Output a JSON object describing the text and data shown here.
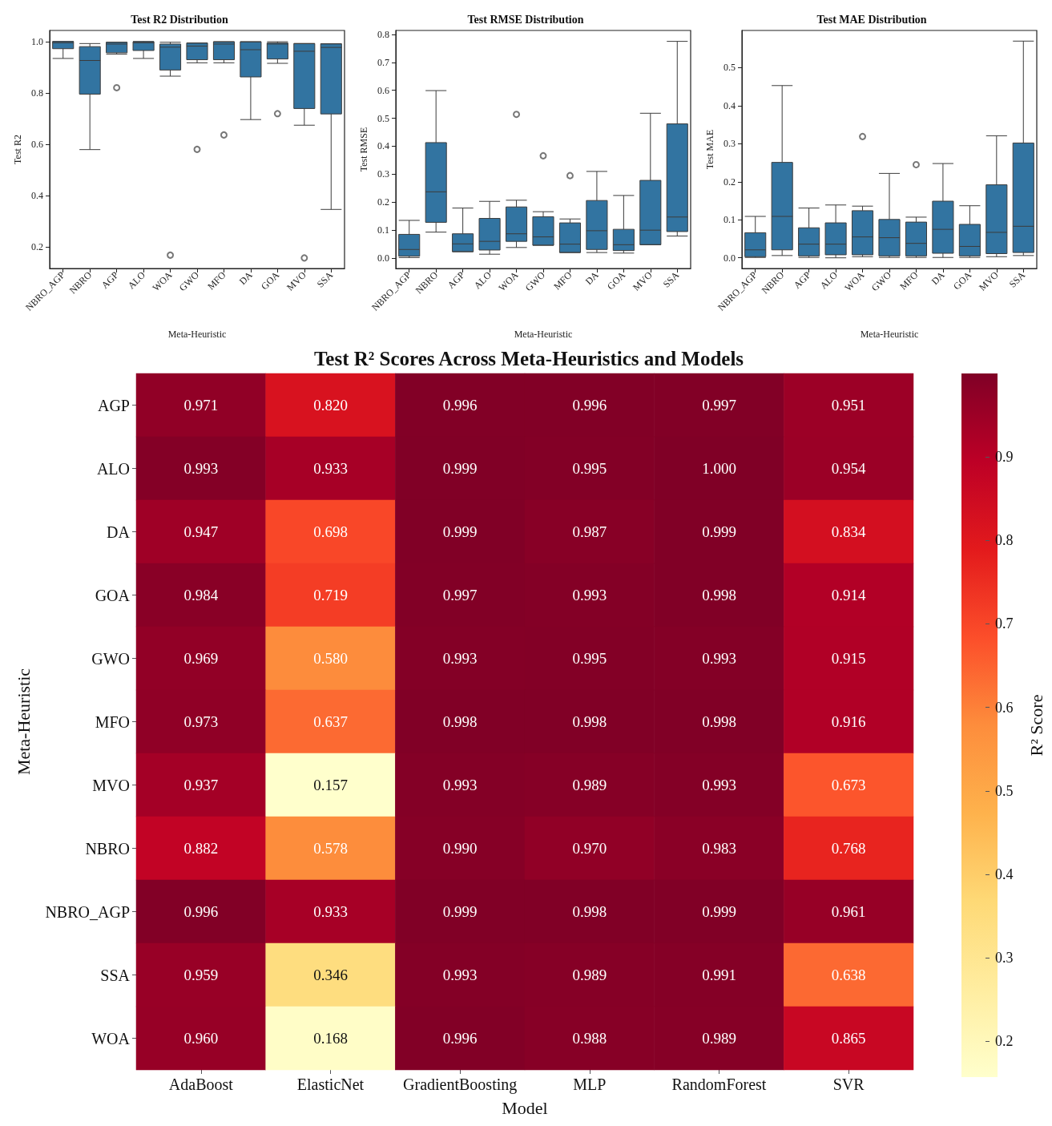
{
  "chart_data": [
    {
      "type": "box",
      "title": "Test R2 Distribution",
      "xlabel": "Meta-Heuristic",
      "ylabel": "Test R2",
      "color": "#3274a1",
      "grid": false,
      "categories": [
        "NBRO_AGP",
        "NBRO",
        "AGP",
        "ALO",
        "WOA",
        "GWO",
        "MFO",
        "DA",
        "GOA",
        "MVO",
        "SSA"
      ],
      "ylim": [
        0.116,
        1.043
      ],
      "yticks": [
        {
          "value": 0.2,
          "label": "0.2"
        },
        {
          "value": 0.4,
          "label": "0.4"
        },
        {
          "value": 0.6,
          "label": "0.6"
        },
        {
          "value": 0.8,
          "label": "0.8"
        },
        {
          "value": 1.0,
          "label": "1.0"
        }
      ],
      "boxes": [
        {
          "low": 0.934,
          "q1": 0.972,
          "median": 0.995,
          "q3": 1.0,
          "high": 1.0
        },
        {
          "low": 0.579,
          "q1": 0.795,
          "median": 0.926,
          "q3": 0.98,
          "high": 0.992
        },
        {
          "low": 0.951,
          "q1": 0.956,
          "median": 0.99,
          "q3": 0.997,
          "high": 0.997,
          "outliers": [
            0.82
          ]
        },
        {
          "low": 0.934,
          "q1": 0.965,
          "median": 0.995,
          "q3": 0.999,
          "high": 1.0
        },
        {
          "low": 0.865,
          "q1": 0.889,
          "median": 0.978,
          "q3": 0.99,
          "high": 0.997,
          "outliers": [
            0.168
          ]
        },
        {
          "low": 0.917,
          "q1": 0.929,
          "median": 0.982,
          "q3": 0.994,
          "high": 0.994,
          "outliers": [
            0.58
          ]
        },
        {
          "low": 0.917,
          "q1": 0.929,
          "median": 0.99,
          "q3": 0.999,
          "high": 0.999,
          "outliers": [
            0.636
          ]
        },
        {
          "low": 0.696,
          "q1": 0.862,
          "median": 0.968,
          "q3": 0.999,
          "high": 0.999
        },
        {
          "low": 0.915,
          "q1": 0.932,
          "median": 0.99,
          "q3": 0.994,
          "high": 0.999,
          "outliers": [
            0.719
          ]
        },
        {
          "low": 0.674,
          "q1": 0.739,
          "median": 0.962,
          "q3": 0.992,
          "high": 0.992,
          "outliers": [
            0.157
          ]
        },
        {
          "low": 0.346,
          "q1": 0.718,
          "median": 0.977,
          "q3": 0.991,
          "high": 0.991
        }
      ]
    },
    {
      "type": "box",
      "title": "Test RMSE Distribution",
      "xlabel": "Meta-Heuristic",
      "ylabel": "Test RMSE",
      "color": "#3274a1",
      "grid": false,
      "categories": [
        "NBRO_AGP",
        "NBRO",
        "AGP",
        "ALO",
        "WOA",
        "GWO",
        "MFO",
        "DA",
        "GOA",
        "MVO",
        "SSA"
      ],
      "ylim": [
        -0.037,
        0.814
      ],
      "yticks": [
        {
          "value": 0,
          "label": "0.0"
        },
        {
          "value": 0.1,
          "label": "0.1"
        },
        {
          "value": 0.2,
          "label": "0.2"
        },
        {
          "value": 0.3,
          "label": "0.3"
        },
        {
          "value": 0.4,
          "label": "0.4"
        },
        {
          "value": 0.5,
          "label": "0.5"
        },
        {
          "value": 0.6,
          "label": "0.6"
        },
        {
          "value": 0.7,
          "label": "0.7"
        },
        {
          "value": 0.8,
          "label": "0.8"
        }
      ],
      "boxes": [
        {
          "low": 0.002,
          "q1": 0.007,
          "median": 0.031,
          "q3": 0.085,
          "high": 0.135
        },
        {
          "low": 0.093,
          "q1": 0.128,
          "median": 0.237,
          "q3": 0.413,
          "high": 0.599
        },
        {
          "low": 0.023,
          "q1": 0.023,
          "median": 0.051,
          "q3": 0.087,
          "high": 0.179
        },
        {
          "low": 0.014,
          "q1": 0.029,
          "median": 0.06,
          "q3": 0.142,
          "high": 0.203
        },
        {
          "low": 0.038,
          "q1": 0.06,
          "median": 0.087,
          "q3": 0.183,
          "high": 0.207,
          "outliers": [
            0.514
          ]
        },
        {
          "low": 0.046,
          "q1": 0.046,
          "median": 0.076,
          "q3": 0.148,
          "high": 0.166,
          "outliers": [
            0.366
          ]
        },
        {
          "low": 0.02,
          "q1": 0.02,
          "median": 0.05,
          "q3": 0.126,
          "high": 0.14,
          "outliers": [
            0.295
          ]
        },
        {
          "low": 0.02,
          "q1": 0.031,
          "median": 0.098,
          "q3": 0.206,
          "high": 0.31
        },
        {
          "low": 0.018,
          "q1": 0.027,
          "median": 0.048,
          "q3": 0.103,
          "high": 0.224
        },
        {
          "low": 0.048,
          "q1": 0.048,
          "median": 0.1,
          "q3": 0.278,
          "high": 0.518
        },
        {
          "low": 0.079,
          "q1": 0.095,
          "median": 0.147,
          "q3": 0.48,
          "high": 0.775
        }
      ]
    },
    {
      "type": "box",
      "title": "Test MAE Distribution",
      "xlabel": "Meta-Heuristic",
      "ylabel": "Test MAE",
      "color": "#3274a1",
      "grid": false,
      "categories": [
        "NBRO_AGP",
        "NBRO",
        "AGP",
        "ALO",
        "WOA",
        "GWO",
        "MFO",
        "DA",
        "GOA",
        "MVO",
        "SSA"
      ],
      "ylim": [
        -0.028,
        0.598
      ],
      "yticks": [
        {
          "value": 0,
          "label": "0.0"
        },
        {
          "value": 0.1,
          "label": "0.1"
        },
        {
          "value": 0.2,
          "label": "0.2"
        },
        {
          "value": 0.3,
          "label": "0.3"
        },
        {
          "value": 0.4,
          "label": "0.4"
        },
        {
          "value": 0.5,
          "label": "0.5"
        }
      ],
      "boxes": [
        {
          "low": 0.001,
          "q1": 0.003,
          "median": 0.021,
          "q3": 0.066,
          "high": 0.109
        },
        {
          "low": 0.006,
          "q1": 0.021,
          "median": 0.109,
          "q3": 0.251,
          "high": 0.453
        },
        {
          "low": 0.001,
          "q1": 0.005,
          "median": 0.036,
          "q3": 0.079,
          "high": 0.131
        },
        {
          "low": 0.0,
          "q1": 0.008,
          "median": 0.036,
          "q3": 0.092,
          "high": 0.139
        },
        {
          "low": 0.003,
          "q1": 0.008,
          "median": 0.055,
          "q3": 0.124,
          "high": 0.136,
          "outliers": [
            0.319
          ]
        },
        {
          "low": 0.001,
          "q1": 0.005,
          "median": 0.053,
          "q3": 0.101,
          "high": 0.222
        },
        {
          "low": 0.001,
          "q1": 0.005,
          "median": 0.038,
          "q3": 0.094,
          "high": 0.107,
          "outliers": [
            0.245
          ]
        },
        {
          "low": 0.001,
          "q1": 0.012,
          "median": 0.075,
          "q3": 0.149,
          "high": 0.248
        },
        {
          "low": 0.001,
          "q1": 0.005,
          "median": 0.03,
          "q3": 0.088,
          "high": 0.137
        },
        {
          "low": 0.003,
          "q1": 0.011,
          "median": 0.067,
          "q3": 0.192,
          "high": 0.321
        },
        {
          "low": 0.006,
          "q1": 0.014,
          "median": 0.083,
          "q3": 0.302,
          "high": 0.57
        }
      ]
    },
    {
      "type": "heatmap",
      "title": "Test R² Scores Across Meta-Heuristics and Models",
      "xlabel": "Model",
      "ylabel": "Meta-Heuristic",
      "clabel": "R² Score",
      "data_labels": true,
      "categories": [
        "AdaBoost",
        "ElasticNet",
        "GradientBoosting",
        "MLP",
        "RandomForest",
        "SVR"
      ],
      "y_categories": [
        "AGP",
        "ALO",
        "DA",
        "GOA",
        "GWO",
        "MFO",
        "MVO",
        "NBRO",
        "NBRO_AGP",
        "SSA",
        "WOA"
      ],
      "cells": [
        [
          0.971,
          0.82,
          0.996,
          0.996,
          0.997,
          0.951
        ],
        [
          0.993,
          0.933,
          0.999,
          0.995,
          1.0,
          0.954
        ],
        [
          0.947,
          0.698,
          0.999,
          0.987,
          0.999,
          0.834
        ],
        [
          0.984,
          0.719,
          0.997,
          0.993,
          0.998,
          0.914
        ],
        [
          0.969,
          0.58,
          0.993,
          0.995,
          0.993,
          0.915
        ],
        [
          0.973,
          0.637,
          0.998,
          0.998,
          0.998,
          0.916
        ],
        [
          0.937,
          0.157,
          0.993,
          0.989,
          0.993,
          0.673
        ],
        [
          0.882,
          0.578,
          0.99,
          0.97,
          0.983,
          0.768
        ],
        [
          0.996,
          0.933,
          0.999,
          0.998,
          0.999,
          0.961
        ],
        [
          0.959,
          0.346,
          0.993,
          0.989,
          0.991,
          0.638
        ],
        [
          0.96,
          0.168,
          0.996,
          0.988,
          0.989,
          0.865
        ]
      ],
      "cell_labels": [
        [
          "0.971",
          "0.820",
          "0.996",
          "0.996",
          "0.997",
          "0.951"
        ],
        [
          "0.993",
          "0.933",
          "0.999",
          "0.995",
          "1.000",
          "0.954"
        ],
        [
          "0.947",
          "0.698",
          "0.999",
          "0.987",
          "0.999",
          "0.834"
        ],
        [
          "0.984",
          "0.719",
          "0.997",
          "0.993",
          "0.998",
          "0.914"
        ],
        [
          "0.969",
          "0.580",
          "0.993",
          "0.995",
          "0.993",
          "0.915"
        ],
        [
          "0.973",
          "0.637",
          "0.998",
          "0.998",
          "0.998",
          "0.916"
        ],
        [
          "0.937",
          "0.157",
          "0.993",
          "0.989",
          "0.993",
          "0.673"
        ],
        [
          "0.882",
          "0.578",
          "0.990",
          "0.970",
          "0.983",
          "0.768"
        ],
        [
          "0.996",
          "0.933",
          "0.999",
          "0.998",
          "0.999",
          "0.961"
        ],
        [
          "0.959",
          "0.346",
          "0.993",
          "0.989",
          "0.991",
          "0.638"
        ],
        [
          "0.960",
          "0.168",
          "0.996",
          "0.988",
          "0.989",
          "0.865"
        ]
      ],
      "clim": [
        0.157,
        1.0
      ],
      "cticks": [
        0.2,
        0.3,
        0.4,
        0.5,
        0.6,
        0.7,
        0.8,
        0.9
      ]
    }
  ]
}
